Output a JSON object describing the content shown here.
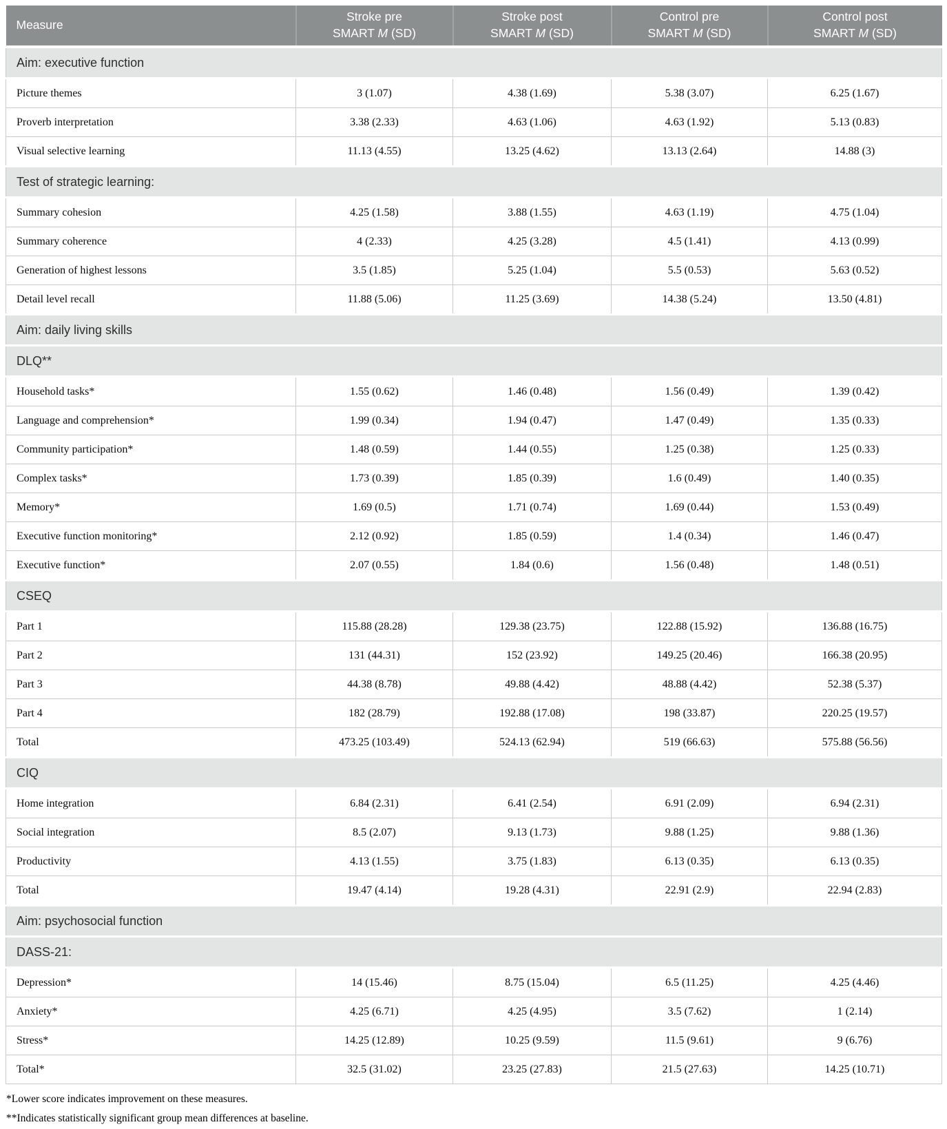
{
  "table": {
    "header": {
      "measure_label": "Measure",
      "columns": [
        {
          "line1": "Stroke pre",
          "line2a": "SMART ",
          "line2m": "M",
          "line2b": " (SD)"
        },
        {
          "line1": "Stroke post",
          "line2a": "SMART ",
          "line2m": "M",
          "line2b": " (SD)"
        },
        {
          "line1": "Control pre",
          "line2a": "SMART ",
          "line2m": "M",
          "line2b": " (SD)"
        },
        {
          "line1": "Control post",
          "line2a": "SMART ",
          "line2m": "M",
          "line2b": " (SD)"
        }
      ]
    },
    "rows": [
      {
        "type": "section",
        "label": "Aim: executive function"
      },
      {
        "type": "data",
        "label": "Picture themes",
        "values": [
          "3 (1.07)",
          "4.38 (1.69)",
          "5.38 (3.07)",
          "6.25 (1.67)"
        ]
      },
      {
        "type": "data",
        "label": "Proverb interpretation",
        "values": [
          "3.38 (2.33)",
          "4.63 (1.06)",
          "4.63 (1.92)",
          "5.13 (0.83)"
        ]
      },
      {
        "type": "data",
        "label": "Visual selective learning",
        "values": [
          "11.13 (4.55)",
          "13.25 (4.62)",
          "13.13 (2.64)",
          "14.88 (3)"
        ]
      },
      {
        "type": "section",
        "label": "Test of strategic learning:"
      },
      {
        "type": "data",
        "label": "Summary cohesion",
        "values": [
          "4.25 (1.58)",
          "3.88 (1.55)",
          "4.63 (1.19)",
          "4.75 (1.04)"
        ]
      },
      {
        "type": "data",
        "label": "Summary coherence",
        "values": [
          "4 (2.33)",
          "4.25 (3.28)",
          "4.5 (1.41)",
          "4.13 (0.99)"
        ]
      },
      {
        "type": "data",
        "label": "Generation of highest lessons",
        "values": [
          "3.5 (1.85)",
          "5.25 (1.04)",
          "5.5 (0.53)",
          "5.63 (0.52)"
        ]
      },
      {
        "type": "data",
        "label": "Detail level recall",
        "values": [
          "11.88 (5.06)",
          "11.25 (3.69)",
          "14.38 (5.24)",
          "13.50 (4.81)"
        ]
      },
      {
        "type": "section",
        "label": "Aim: daily living skills"
      },
      {
        "type": "section",
        "label": "DLQ**"
      },
      {
        "type": "data",
        "label": "Household tasks*",
        "values": [
          "1.55 (0.62)",
          "1.46 (0.48)",
          "1.56 (0.49)",
          "1.39 (0.42)"
        ]
      },
      {
        "type": "data",
        "label": "Language and comprehension*",
        "values": [
          "1.99 (0.34)",
          "1.94 (0.47)",
          "1.47 (0.49)",
          "1.35 (0.33)"
        ]
      },
      {
        "type": "data",
        "label": "Community participation*",
        "values": [
          "1.48 (0.59)",
          "1.44 (0.55)",
          "1.25 (0.38)",
          "1.25 (0.33)"
        ]
      },
      {
        "type": "data",
        "label": "Complex tasks*",
        "values": [
          "1.73 (0.39)",
          "1.85 (0.39)",
          "1.6 (0.49)",
          "1.40 (0.35)"
        ]
      },
      {
        "type": "data",
        "label": "Memory*",
        "values": [
          "1.69 (0.5)",
          "1.71 (0.74)",
          "1.69 (0.44)",
          "1.53 (0.49)"
        ]
      },
      {
        "type": "data",
        "label": "Executive function monitoring*",
        "values": [
          "2.12 (0.92)",
          "1.85 (0.59)",
          "1.4 (0.34)",
          "1.46 (0.47)"
        ]
      },
      {
        "type": "data",
        "label": "Executive function*",
        "values": [
          "2.07 (0.55)",
          "1.84 (0.6)",
          "1.56 (0.48)",
          "1.48 (0.51)"
        ]
      },
      {
        "type": "section",
        "label": "CSEQ"
      },
      {
        "type": "data",
        "label": "Part 1",
        "values": [
          "115.88 (28.28)",
          "129.38 (23.75)",
          "122.88 (15.92)",
          "136.88 (16.75)"
        ]
      },
      {
        "type": "data",
        "label": "Part 2",
        "values": [
          "131 (44.31)",
          "152 (23.92)",
          "149.25 (20.46)",
          "166.38 (20.95)"
        ]
      },
      {
        "type": "data",
        "label": "Part 3",
        "values": [
          "44.38 (8.78)",
          "49.88 (4.42)",
          "48.88 (4.42)",
          "52.38 (5.37)"
        ]
      },
      {
        "type": "data",
        "label": "Part 4",
        "values": [
          "182 (28.79)",
          "192.88 (17.08)",
          "198 (33.87)",
          "220.25 (19.57)"
        ]
      },
      {
        "type": "data",
        "label": "Total",
        "values": [
          "473.25 (103.49)",
          "524.13 (62.94)",
          "519 (66.63)",
          "575.88 (56.56)"
        ]
      },
      {
        "type": "section",
        "label": "CIQ"
      },
      {
        "type": "data",
        "label": "Home integration",
        "values": [
          "6.84 (2.31)",
          "6.41 (2.54)",
          "6.91 (2.09)",
          "6.94 (2.31)"
        ]
      },
      {
        "type": "data",
        "label": "Social integration",
        "values": [
          "8.5 (2.07)",
          "9.13 (1.73)",
          "9.88 (1.25)",
          "9.88 (1.36)"
        ]
      },
      {
        "type": "data",
        "label": "Productivity",
        "values": [
          "4.13 (1.55)",
          "3.75 (1.83)",
          "6.13 (0.35)",
          "6.13 (0.35)"
        ]
      },
      {
        "type": "data",
        "label": "Total",
        "values": [
          "19.47 (4.14)",
          "19.28 (4.31)",
          "22.91 (2.9)",
          "22.94 (2.83)"
        ]
      },
      {
        "type": "section",
        "label": "Aim: psychosocial function"
      },
      {
        "type": "section",
        "label": "DASS-21:"
      },
      {
        "type": "data",
        "label": "Depression*",
        "values": [
          "14 (15.46)",
          "8.75 (15.04)",
          "6.5 (11.25)",
          "4.25 (4.46)"
        ]
      },
      {
        "type": "data",
        "label": "Anxiety*",
        "values": [
          "4.25 (6.71)",
          "4.25 (4.95)",
          "3.5 (7.62)",
          "1 (2.14)"
        ]
      },
      {
        "type": "data",
        "label": "Stress*",
        "values": [
          "14.25 (12.89)",
          "10.25 (9.59)",
          "11.5 (9.61)",
          "9 (6.76)"
        ]
      },
      {
        "type": "data",
        "label": "Total*",
        "values": [
          "32.5 (31.02)",
          "23.25 (27.83)",
          "21.5 (27.63)",
          "14.25 (10.71)"
        ]
      }
    ],
    "colors": {
      "header_bg": "#8b8f90",
      "header_text": "#ffffff",
      "section_bg": "#e3e4e4",
      "border": "#c9cbcb"
    }
  },
  "footnotes": [
    "*Lower score indicates improvement on these measures.",
    "**Indicates statistically significant group mean differences at baseline."
  ]
}
